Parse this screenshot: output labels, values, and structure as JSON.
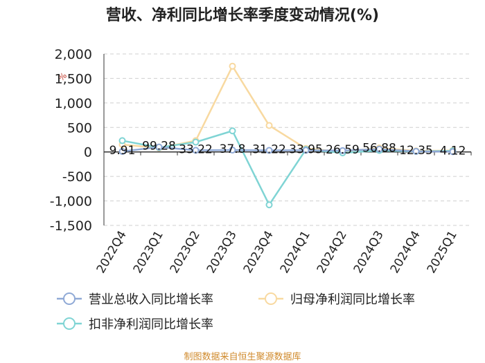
{
  "chart_data": {
    "type": "line",
    "title": "营收、净利同比增长率季度变动情况(%)",
    "unit_label": "%",
    "categories": [
      "2022Q4",
      "2023Q1",
      "2023Q2",
      "2023Q3",
      "2023Q4",
      "2024Q1",
      "2024Q2",
      "2024Q3",
      "2024Q4",
      "2025Q1"
    ],
    "ylim": [
      -1500,
      2000
    ],
    "yticks": [
      2000,
      1500,
      1000,
      500,
      0,
      -500,
      -1000,
      -1500
    ],
    "ytick_labels": [
      "2,000",
      "1,500",
      "1,000",
      "500",
      "0",
      "-500",
      "-1,000",
      "-1,500"
    ],
    "grid": true,
    "legend_position": "bottom",
    "series": [
      {
        "name": "营业总收入同比增长率",
        "color": "#8fa9d6",
        "values": [
          9.91,
          99.28,
          33.22,
          37.8,
          31.22,
          33.95,
          26.59,
          56.88,
          12.35,
          4.12
        ],
        "labels": [
          "9.91",
          "99.28",
          "33.22",
          "37.8",
          "31.22",
          "33.95",
          "26.59",
          "56.88",
          "12.35",
          "4.12"
        ]
      },
      {
        "name": "归母净利润同比增长率",
        "color": "#f8d9a0",
        "values": [
          150,
          80,
          230,
          1750,
          540,
          70,
          5,
          80,
          20,
          30
        ]
      },
      {
        "name": "扣非净利润同比增长率",
        "color": "#7fd4d4",
        "values": [
          230,
          90,
          200,
          430,
          -1080,
          50,
          -20,
          30,
          10,
          20
        ]
      }
    ],
    "source": "制图数据来自恒生聚源数据库"
  }
}
